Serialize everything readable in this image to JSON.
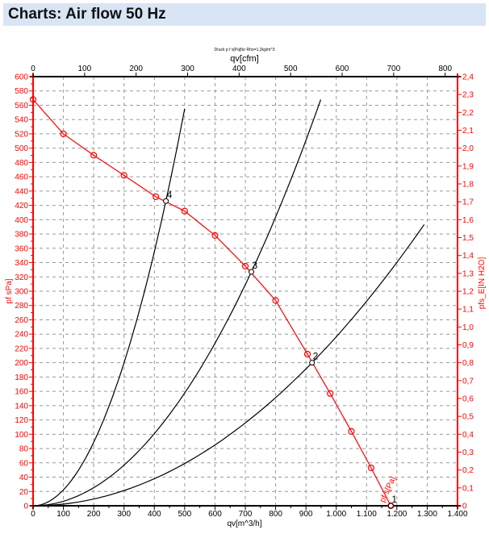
{
  "header": {
    "title": "Charts: Air flow 50 Hz"
  },
  "chart_data": {
    "type": "line",
    "subtitle": "Druck p f s[Pa]für Rho=1,2kg/m^3",
    "xlabel": "qv[m^3/h]",
    "x2label": "qv[cfm]",
    "ylabel": "pf sPa]",
    "y2label": "pfs_E[IN H2O]",
    "xlim": [
      0,
      1400
    ],
    "x2lim": [
      0,
      824
    ],
    "ylim": [
      0,
      600
    ],
    "y2lim": [
      0,
      2.4
    ],
    "xticks": [
      "0",
      "100",
      "200",
      "300",
      "400",
      "500",
      "600",
      "700",
      "800",
      "900",
      "1.000",
      "1.100",
      "1.200",
      "1.300",
      "1.400"
    ],
    "x2ticks": [
      "0",
      "100",
      "200",
      "300",
      "400",
      "500",
      "600",
      "700",
      "800"
    ],
    "grid": true,
    "fan_curve": {
      "name": "pf s[Pa]",
      "color": "#ff0000",
      "x": [
        0,
        100,
        200,
        300,
        405,
        500,
        600,
        700,
        800,
        905,
        980,
        1050,
        1115,
        1180
      ],
      "y": [
        568,
        520,
        490,
        462,
        432,
        412,
        378,
        335,
        287,
        212,
        157,
        104,
        53,
        0
      ]
    },
    "operating_points": [
      {
        "label": "1",
        "x": 1180,
        "y": 0
      },
      {
        "label": "2",
        "x": 920,
        "y": 200
      },
      {
        "label": "3",
        "x": 720,
        "y": 327
      },
      {
        "label": "4",
        "x": 438,
        "y": 426
      }
    ],
    "system_curves": [
      {
        "name": "4",
        "through": [
          438,
          426
        ],
        "xmax": 500
      },
      {
        "name": "3",
        "through": [
          720,
          327
        ],
        "xmax": 965
      },
      {
        "name": "2",
        "through": [
          920,
          200
        ],
        "xmax": 1290
      }
    ]
  }
}
